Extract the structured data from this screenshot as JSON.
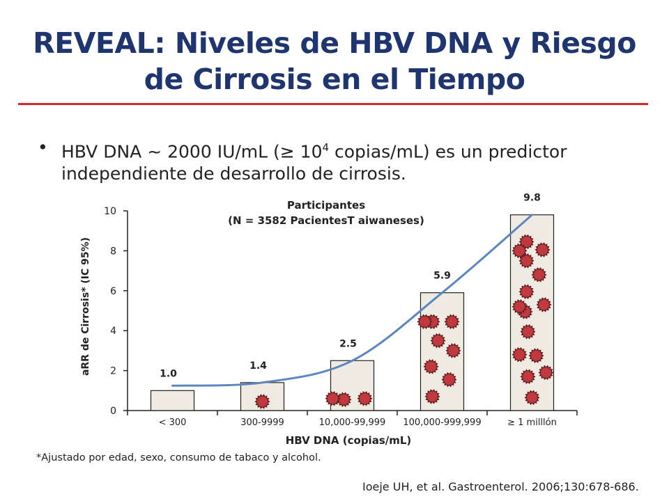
{
  "slide": {
    "title_line1": "REVEAL: Niveles de HBV DNA y Riesgo",
    "title_line2": "de Cirrosis en el Tiempo",
    "bullet_part1": "HBV DNA ~ 2000 IU/mL (≥ 10",
    "bullet_sup": "4",
    "bullet_part2": " copias/mL) es un predictor independiente de desarrollo de cirrosis.",
    "footnote": "*Ajustado por edad, sexo, consumo de tabaco y alcohol.",
    "citation": "Ioeje UH, et al. Gastroenterol.  2006;130:678-686."
  },
  "chart_data": {
    "type": "bar",
    "title_line1": "Participantes",
    "title_line2": "(N = 3582 PacientesT aiwaneses)",
    "xlabel": "HBV DNA (copias/mL)",
    "ylabel": "aRR de Cirrosis* (IC 95%)",
    "categories": [
      "< 300",
      "300-9999",
      "10,000-99,999",
      "100,000-999,999",
      "≥ 1 milllón"
    ],
    "values": [
      1.0,
      1.4,
      2.5,
      5.9,
      9.8
    ],
    "value_labels": [
      "1.0",
      "1.4",
      "2.5",
      "5.9",
      "9.8"
    ],
    "ylim": [
      0,
      10
    ],
    "yticks": [
      "0",
      "2",
      "4",
      "6",
      "8",
      "10"
    ],
    "trend_line": true,
    "virus_icon_counts": [
      0,
      1,
      3,
      8,
      15
    ],
    "colors": {
      "bar_fill": "#efebe2",
      "bar_stroke": "#222222",
      "trend": "#5b86c0",
      "virus_fill": "#c0393f",
      "virus_spike": "#5a1d1d"
    }
  }
}
